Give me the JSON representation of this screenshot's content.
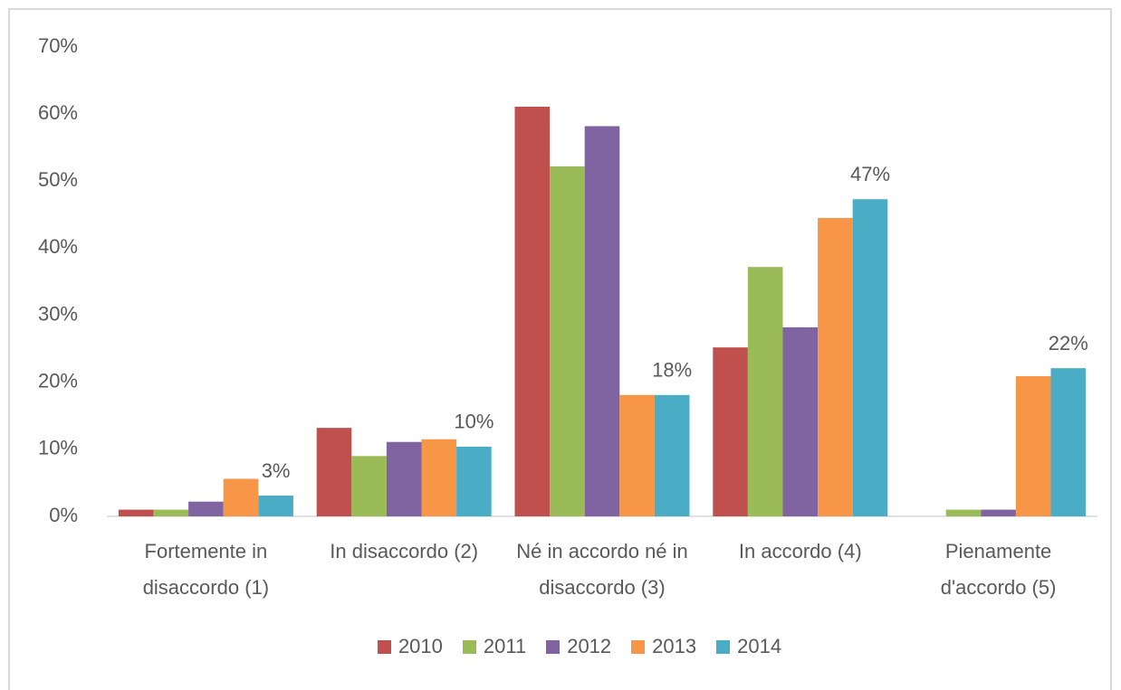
{
  "chart_data": {
    "type": "bar",
    "categories": [
      "Fortemente in disaccordo (1)",
      "In disaccordo (2)",
      "Né in accordo né in disaccordo (3)",
      "In accordo (4)",
      "Pienamente d'accordo (5)"
    ],
    "series": [
      {
        "name": "2010",
        "color": "#c0504d",
        "values": [
          1,
          13.2,
          61.1,
          25.2,
          0
        ]
      },
      {
        "name": "2011",
        "color": "#9bbb59",
        "values": [
          1,
          9,
          52.2,
          37.2,
          1
        ]
      },
      {
        "name": "2012",
        "color": "#8064a2",
        "values": [
          2.2,
          11.1,
          58.2,
          28.2,
          1
        ]
      },
      {
        "name": "2013",
        "color": "#f79646",
        "values": [
          5.6,
          11.5,
          18.1,
          44.5,
          20.9
        ]
      },
      {
        "name": "2014",
        "color": "#4bacc6",
        "values": [
          3.1,
          10.4,
          18.1,
          47.3,
          22.1
        ],
        "value_labels": [
          "3%",
          "10%",
          "18%",
          "47%",
          "22%"
        ]
      }
    ],
    "ylim": [
      0,
      70
    ],
    "yticks": [
      {
        "value": 0,
        "label": "0%"
      },
      {
        "value": 10,
        "label": "10%"
      },
      {
        "value": 20,
        "label": "20%"
      },
      {
        "value": 30,
        "label": "30%"
      },
      {
        "value": 40,
        "label": "40%"
      },
      {
        "value": 50,
        "label": "50%"
      },
      {
        "value": 60,
        "label": "60%"
      },
      {
        "value": 70,
        "label": "70%"
      }
    ],
    "grid": false
  }
}
